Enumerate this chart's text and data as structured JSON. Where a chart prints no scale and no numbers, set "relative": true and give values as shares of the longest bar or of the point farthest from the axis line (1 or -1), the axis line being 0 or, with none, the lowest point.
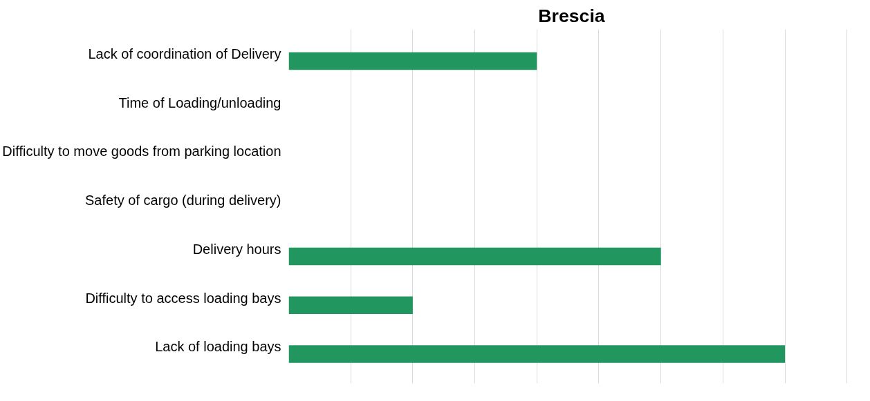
{
  "chart_data": {
    "type": "bar",
    "orientation": "horizontal",
    "relative": true,
    "title": "Brescia",
    "categories": [
      "Lack of coordination of Delivery",
      "Time of Loading/unloading",
      "Difficulty to move goods from parking location",
      "Safety of cargo (during delivery)",
      "Delivery hours",
      "Difficulty to access loading bays",
      "Lack of loading bays"
    ],
    "values": [
      0.5,
      0,
      0,
      0,
      0.75,
      0.25,
      1
    ],
    "color": "#21965f",
    "grid": "x",
    "tick_labels": "y"
  }
}
